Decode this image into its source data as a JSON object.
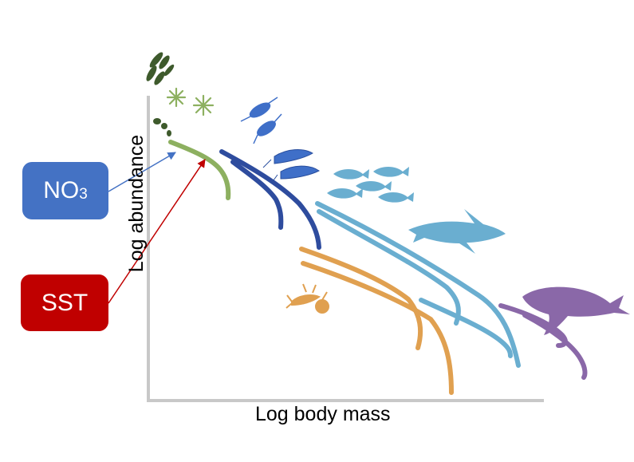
{
  "drivers": {
    "no3": {
      "label": "NO",
      "subscript": "3",
      "color": "#4472c4"
    },
    "sst": {
      "label": "SST",
      "color": "#c00000"
    }
  },
  "axes": {
    "x_label": "Log body mass",
    "y_label": "Log abundance"
  },
  "size_classes": [
    {
      "name": "phytoplankton",
      "color": "#8db060"
    },
    {
      "name": "zooplankton",
      "color": "#2e4c9e"
    },
    {
      "name": "benthic invertebrates",
      "color": "#e0a050"
    },
    {
      "name": "fish",
      "color": "#6aaed0"
    },
    {
      "name": "marine mammals",
      "color": "#8a68a8"
    }
  ]
}
